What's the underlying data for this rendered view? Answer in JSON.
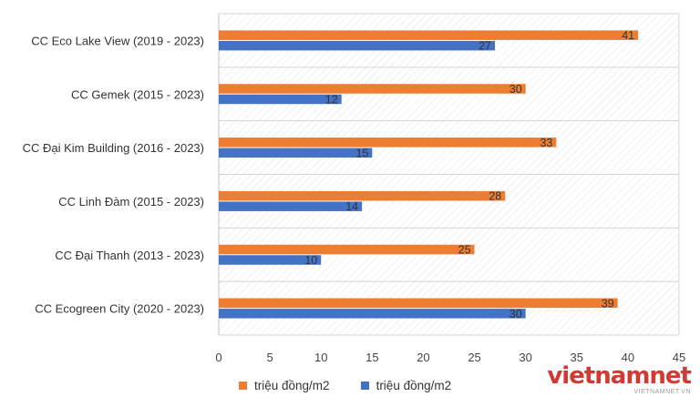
{
  "chart_data": {
    "type": "bar",
    "orientation": "horizontal",
    "categories": [
      "CC Eco Lake View (2019 - 2023)",
      "CC Gemek (2015 - 2023)",
      "CC Đại Kim Building (2016 - 2023)",
      "CC Linh Đàm (2015 - 2023)",
      "CC Đại Thanh (2013 - 2023)",
      "CC Ecogreen City (2020 - 2023)"
    ],
    "series": [
      {
        "name": "triệu đồng/m2",
        "color": "#ED7D31",
        "values": [
          41,
          30,
          33,
          28,
          25,
          39
        ]
      },
      {
        "name": "triệu đồng/m2",
        "color": "#4472C4",
        "values": [
          27,
          12,
          15,
          14,
          10,
          30
        ]
      }
    ],
    "xlim": [
      0,
      45
    ],
    "xticks": [
      0,
      5,
      10,
      15,
      20,
      25,
      30,
      35,
      40,
      45
    ],
    "grid": true,
    "plot_background": "hatched",
    "legend_position": "bottom"
  },
  "watermark": {
    "main": "vietnamnet",
    "sub": "VIETNAMNET.VN"
  }
}
